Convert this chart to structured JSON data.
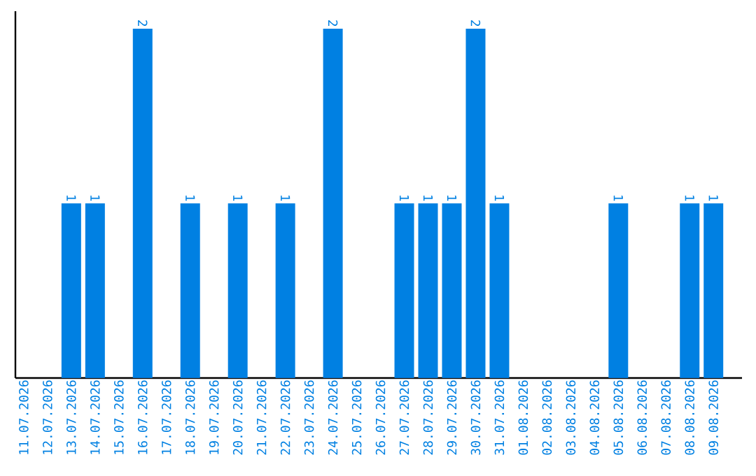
{
  "chart_data": {
    "type": "bar",
    "categories": [
      "11.07.2026",
      "12.07.2026",
      "13.07.2026",
      "14.07.2026",
      "15.07.2026",
      "16.07.2026",
      "17.07.2026",
      "18.07.2026",
      "19.07.2026",
      "20.07.2026",
      "21.07.2026",
      "22.07.2026",
      "23.07.2026",
      "24.07.2026",
      "25.07.2026",
      "26.07.2026",
      "27.07.2026",
      "28.07.2026",
      "29.07.2026",
      "30.07.2026",
      "31.07.2026",
      "01.08.2026",
      "02.08.2026",
      "03.08.2026",
      "04.08.2026",
      "05.08.2026",
      "06.08.2026",
      "07.08.2026",
      "08.08.2026",
      "09.08.2026"
    ],
    "values": [
      0,
      0,
      1,
      1,
      0,
      2,
      0,
      1,
      0,
      1,
      0,
      1,
      0,
      2,
      0,
      0,
      1,
      1,
      1,
      2,
      1,
      0,
      0,
      0,
      0,
      1,
      0,
      0,
      1,
      1
    ],
    "value_labels": [
      null,
      null,
      "1",
      "1",
      null,
      "2",
      null,
      "1",
      null,
      "1",
      null,
      "1",
      null,
      "2",
      null,
      null,
      "1",
      "1",
      "1",
      "2",
      "1",
      null,
      null,
      null,
      null,
      "1",
      null,
      null,
      "1",
      "1"
    ],
    "color": "#0080e2",
    "ylim": [
      0,
      2.1
    ]
  }
}
